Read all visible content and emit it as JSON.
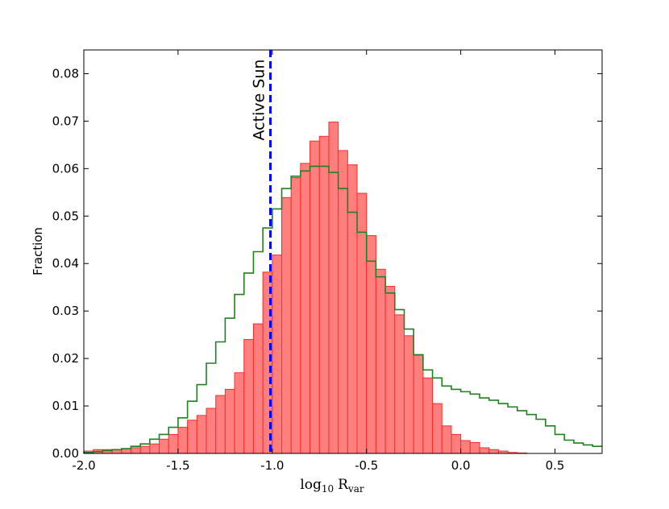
{
  "chart_data": {
    "type": "bar",
    "title": "",
    "xlabel": {
      "base": "log",
      "base_sub": "10",
      "var": "R",
      "var_sub": "var"
    },
    "ylabel": "Fraction",
    "xlim": [
      -2.0,
      0.75
    ],
    "ylim": [
      0.0,
      0.085
    ],
    "x_ticks": [
      "-2.0",
      "-1.5",
      "-1.0",
      "-0.5",
      "0.0",
      "0.5"
    ],
    "x_tick_values": [
      -2.0,
      -1.5,
      -1.0,
      -0.5,
      0.0,
      0.5
    ],
    "y_ticks": [
      "0.00",
      "0.01",
      "0.02",
      "0.03",
      "0.04",
      "0.05",
      "0.06",
      "0.07",
      "0.08"
    ],
    "y_tick_values": [
      0.0,
      0.01,
      0.02,
      0.03,
      0.04,
      0.05,
      0.06,
      0.07,
      0.08
    ],
    "bin_edges_start": -2.0,
    "bin_width": 0.05,
    "series": [
      {
        "kind": "filled-histogram",
        "color": "#ff7f7f",
        "edge_color": "#ff2a2a",
        "values": [
          0.0005,
          0.0008,
          0.0008,
          0.0008,
          0.001,
          0.0012,
          0.0015,
          0.002,
          0.003,
          0.004,
          0.0055,
          0.007,
          0.008,
          0.0095,
          0.0122,
          0.0135,
          0.017,
          0.024,
          0.0273,
          0.0382,
          0.0418,
          0.0539,
          0.0581,
          0.0611,
          0.0658,
          0.0668,
          0.0698,
          0.0638,
          0.0608,
          0.0548,
          0.0459,
          0.0388,
          0.0352,
          0.0292,
          0.0248,
          0.0207,
          0.0159,
          0.0105,
          0.0058,
          0.004,
          0.0027,
          0.0023,
          0.0012,
          0.0008,
          0.0005,
          0.0002,
          0.0001,
          0.0,
          0.0,
          0.0,
          0.0,
          0.0,
          0.0,
          0.0,
          0.0
        ]
      },
      {
        "kind": "step",
        "color": "#208020",
        "values": [
          0.0002,
          0.0004,
          0.0006,
          0.0008,
          0.001,
          0.0015,
          0.002,
          0.003,
          0.004,
          0.0055,
          0.0075,
          0.011,
          0.0145,
          0.019,
          0.0235,
          0.0285,
          0.0335,
          0.038,
          0.0425,
          0.0475,
          0.0515,
          0.0558,
          0.0584,
          0.0595,
          0.0605,
          0.0605,
          0.0592,
          0.0558,
          0.0508,
          0.0466,
          0.0405,
          0.0372,
          0.0338,
          0.0303,
          0.0262,
          0.0208,
          0.0176,
          0.0159,
          0.0142,
          0.0135,
          0.013,
          0.0125,
          0.0117,
          0.0112,
          0.0105,
          0.0098,
          0.009,
          0.0082,
          0.0072,
          0.0058,
          0.004,
          0.0028,
          0.0022,
          0.0018,
          0.0015
        ]
      }
    ],
    "reference_line": {
      "x": -1.01,
      "label": "Active Sun",
      "color": "#0000ff"
    }
  }
}
